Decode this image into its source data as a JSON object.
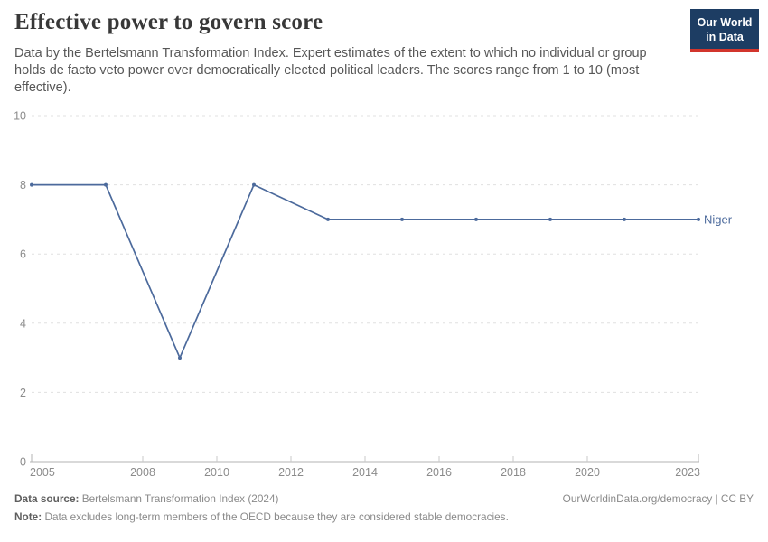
{
  "header": {
    "title": "Effective power to govern score",
    "subtitle": "Data by the Bertelsmann Transformation Index. Expert estimates of the extent to which no individual or group holds de facto veto power over democratically elected political leaders. The scores range from 1 to 10 (most effective).",
    "logo": {
      "line1": "Our World",
      "line2": "in Data",
      "background": "#1d3d63",
      "accent": "#d2352c"
    }
  },
  "chart_data": {
    "type": "line",
    "title": "Effective power to govern score",
    "xlabel": "",
    "ylabel": "",
    "xlim": [
      2005,
      2023
    ],
    "ylim": [
      0,
      10
    ],
    "x_ticks": [
      "2005",
      "2008",
      "2010",
      "2012",
      "2014",
      "2016",
      "2018",
      "2020",
      "2023"
    ],
    "y_ticks": [
      "0",
      "2",
      "4",
      "6",
      "8",
      "10"
    ],
    "grid": "horizontal-dashed",
    "legend_position": "end-of-line-label",
    "series": [
      {
        "name": "Niger",
        "color": "#4c6a9c",
        "x": [
          2005,
          2007,
          2009,
          2011,
          2013,
          2015,
          2017,
          2019,
          2021,
          2023
        ],
        "values": [
          8,
          8,
          3,
          8,
          7,
          7,
          7,
          7,
          7,
          7
        ]
      }
    ],
    "colors": {
      "grid": "#e0e0e0",
      "axis": "#b3b3b3",
      "tick": "#c9c9c9",
      "tick_label": "#8b8b8b"
    }
  },
  "footer": {
    "source_label": "Data source:",
    "source_text": "Bertelsmann Transformation Index (2024)",
    "rights": "OurWorldinData.org/democracy | CC BY",
    "note_label": "Note:",
    "note_text": "Data excludes long-term members of the OECD because they are considered stable democracies."
  }
}
